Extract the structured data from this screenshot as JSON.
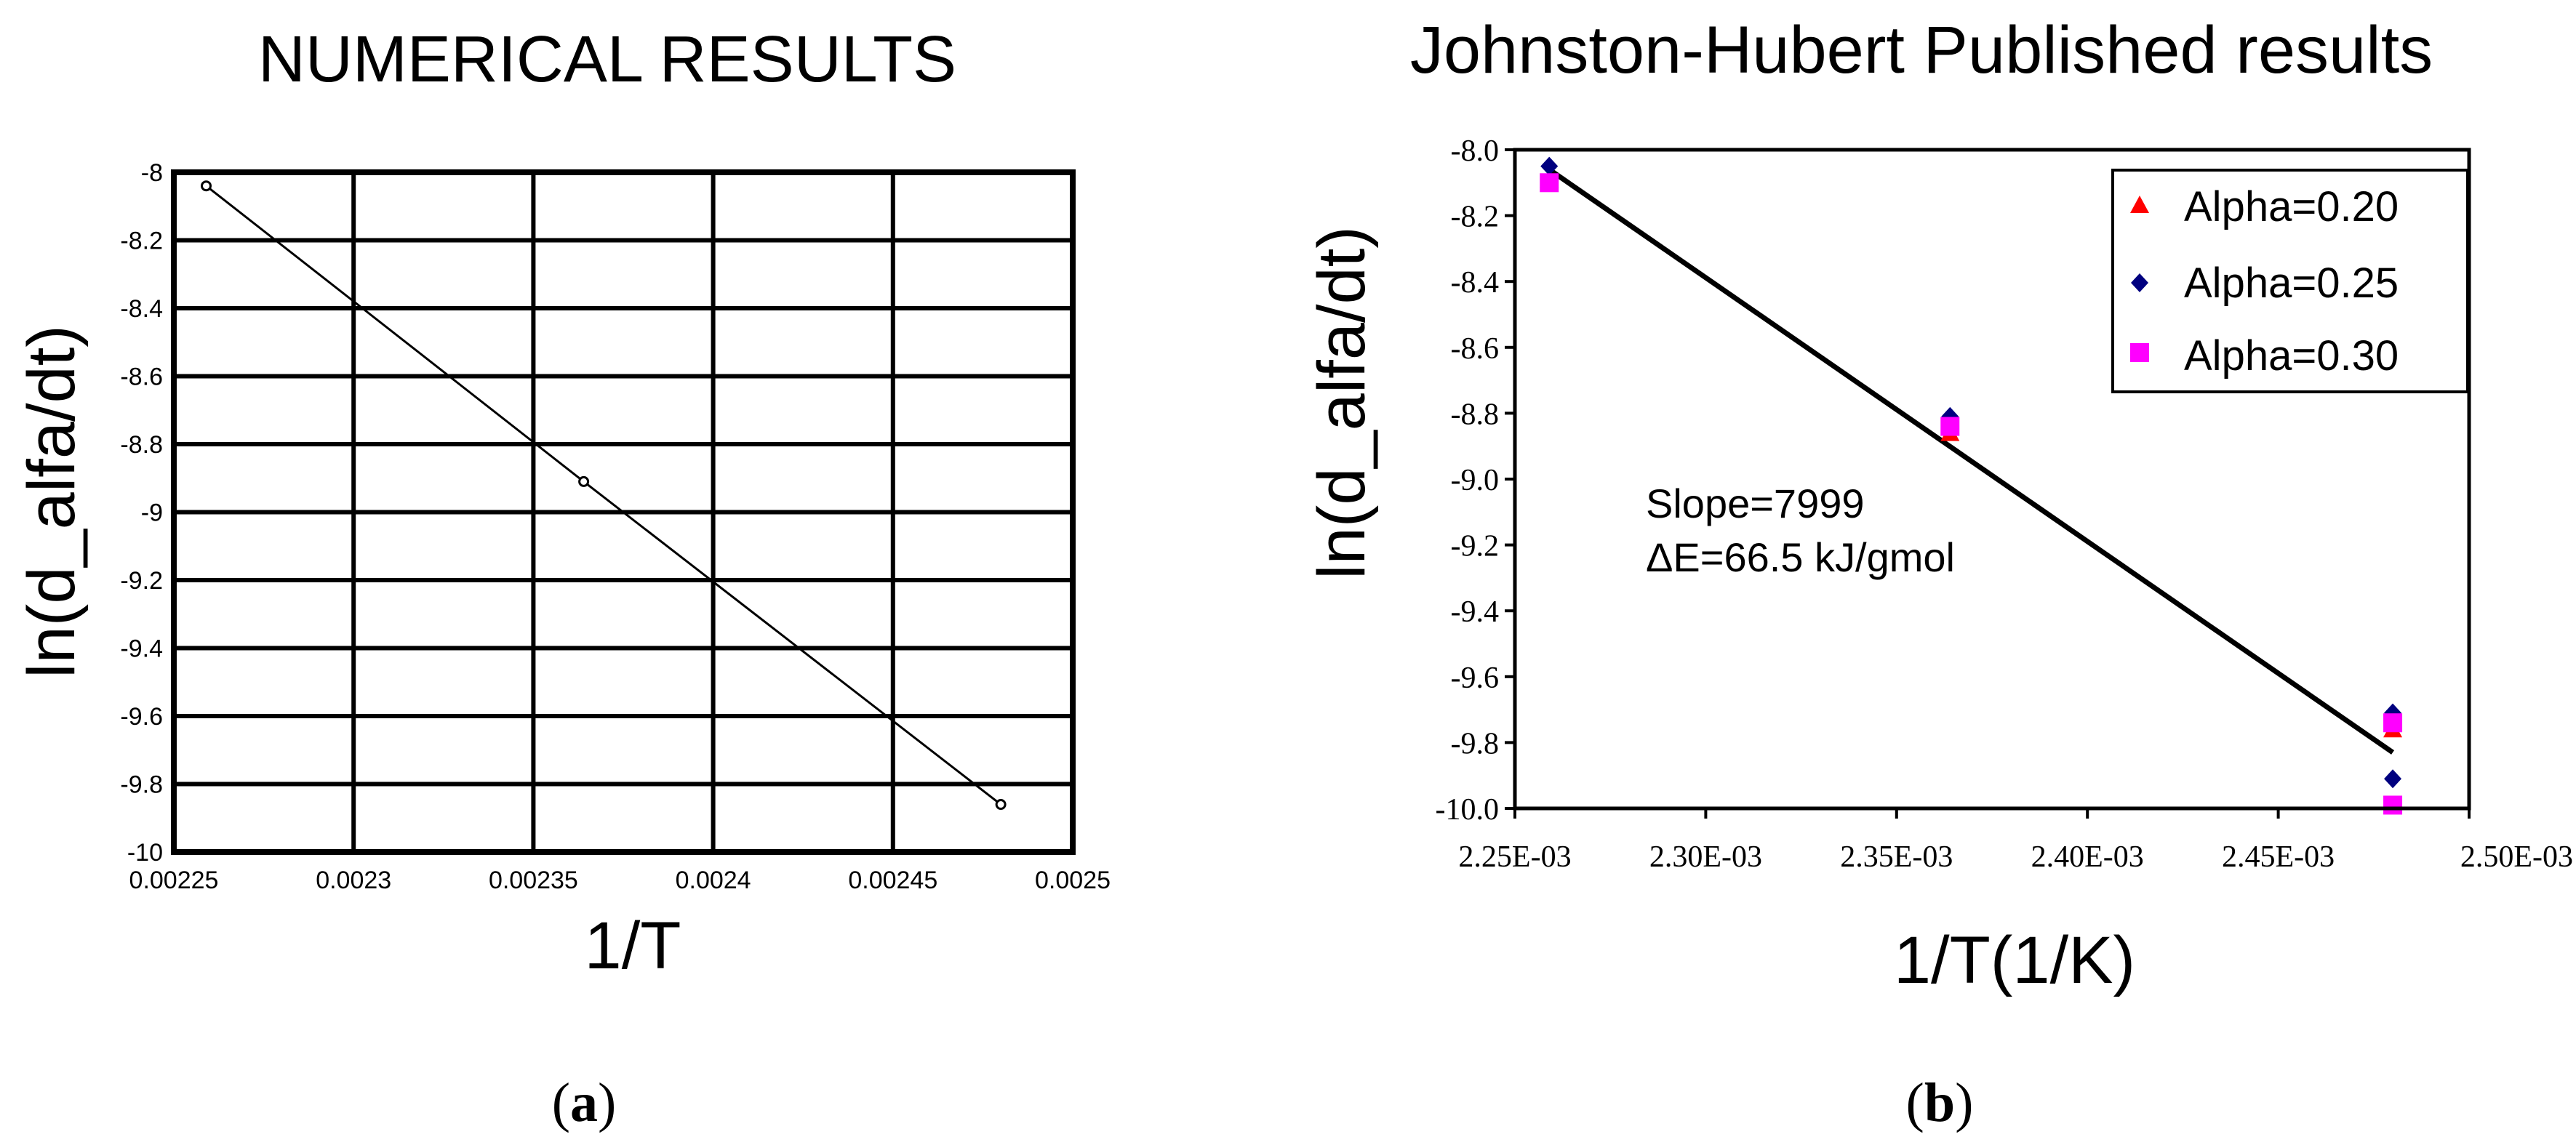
{
  "figure": {
    "caption_a": "(a)",
    "caption_a_letter": "a",
    "caption_b": "(b)",
    "caption_b_letter": "b"
  },
  "colors": {
    "axis": "#000000",
    "grid": "#000000",
    "line": "#000000",
    "alpha020": "#ff0000",
    "alpha025": "#00007f",
    "alpha030": "#ff00ff"
  },
  "chart_data": [
    {
      "type": "line",
      "title": "NUMERICAL RESULTS",
      "xlabel": "1/T",
      "ylabel": "ln(d_alfa/dt)",
      "xlim": [
        0.00225,
        0.0025
      ],
      "ylim": [
        -10,
        -8
      ],
      "xticks": [
        0.00225,
        0.0023,
        0.00235,
        0.0024,
        0.00245,
        0.0025
      ],
      "xtick_labels": [
        "0.00225",
        "0.0023",
        "0.00235",
        "0.0024",
        "0.00245",
        "0.0025"
      ],
      "yticks": [
        -8,
        -8.2,
        -8.4,
        -8.6,
        -8.8,
        -9,
        -9.2,
        -9.4,
        -9.6,
        -9.8,
        -10
      ],
      "ytick_labels": [
        "-8",
        "-8.2",
        "-8.4",
        "-8.6",
        "-8.8",
        "-9",
        "-9.2",
        "-9.4",
        "-9.6",
        "-9.8",
        "-10"
      ],
      "grid": true,
      "series": [
        {
          "x": [
            0.002259,
            0.002364,
            0.00248
          ],
          "y": [
            -8.04,
            -8.91,
            -9.86
          ]
        }
      ]
    },
    {
      "type": "scatter",
      "title": "Johnston-Hubert Published results",
      "xlabel": "1/T(1/K)",
      "ylabel": "ln(d_alfa/dt)",
      "xlim": [
        0.00225,
        0.0025
      ],
      "ylim": [
        -10.0,
        -8.0
      ],
      "xticks": [
        0.00225,
        0.0023,
        0.00235,
        0.0024,
        0.00245,
        0.0025
      ],
      "xtick_labels": [
        "2.25E-03",
        "2.30E-03",
        "2.35E-03",
        "2.40E-03",
        "2.45E-03",
        "2.50E-03"
      ],
      "yticks": [
        -8.0,
        -8.2,
        -8.4,
        -8.6,
        -8.8,
        -9.0,
        -9.2,
        -9.4,
        -9.6,
        -9.8,
        -10.0
      ],
      "ytick_labels": [
        "-8.0",
        "-8.2",
        "-8.4",
        "-8.6",
        "-8.8",
        "-9.0",
        "-9.2",
        "-9.4",
        "-9.6",
        "-9.8",
        "-10.0"
      ],
      "grid": false,
      "legend_position": "top-right",
      "series": [
        {
          "name": "Alpha=0.20",
          "marker": "triangle",
          "x": [
            0.002259,
            0.002364,
            0.00248
          ],
          "y": [
            -8.09,
            -8.86,
            -9.76
          ]
        },
        {
          "name": "Alpha=0.25",
          "marker": "diamond",
          "x": [
            0.002259,
            0.002364,
            0.00248,
            0.00248
          ],
          "y": [
            -8.05,
            -8.81,
            -9.71,
            -9.91
          ]
        },
        {
          "name": "Alpha=0.30",
          "marker": "square",
          "x": [
            0.002259,
            0.002364,
            0.00248,
            0.00248
          ],
          "y": [
            -8.1,
            -8.84,
            -9.74,
            -9.99
          ]
        }
      ],
      "fit_line": {
        "x": [
          0.002259,
          0.00248
        ],
        "y": [
          -8.06,
          -9.83
        ]
      },
      "annotation": [
        "Slope=7999",
        "ΔE=66.5 kJ/gmol"
      ]
    }
  ]
}
